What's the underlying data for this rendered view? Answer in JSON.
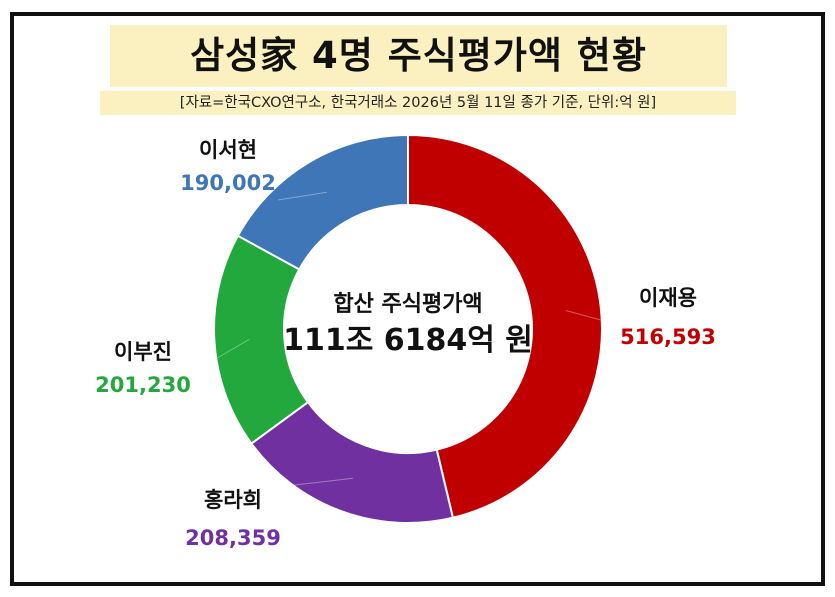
{
  "header": {
    "title": "삼성家 4명 주식평가액 현황",
    "source": "[자료=한국CXO연구소, 한국거래소 2026년 5월 11일 종가 기준, 단위:억 원]"
  },
  "center": {
    "line1": "합산 주식평가액",
    "line2": "111조 6184억 원"
  },
  "colors": {
    "title_bg": "#fbf0c0",
    "frame": "#111111"
  },
  "chart_data": {
    "type": "pie",
    "donut": true,
    "start": "12 o'clock",
    "direction": "clockwise",
    "unit": "억 원",
    "slices": [
      {
        "name": "이재용",
        "value": 516593,
        "label": "516,593",
        "color": "#c00000"
      },
      {
        "name": "홍라희",
        "value": 208359,
        "label": "208,359",
        "color": "#7030a0"
      },
      {
        "name": "이부진",
        "value": 201230,
        "label": "201,230",
        "color": "#22a83c"
      },
      {
        "name": "이서현",
        "value": 190002,
        "label": "190,002",
        "color": "#3e76b8"
      }
    ]
  }
}
